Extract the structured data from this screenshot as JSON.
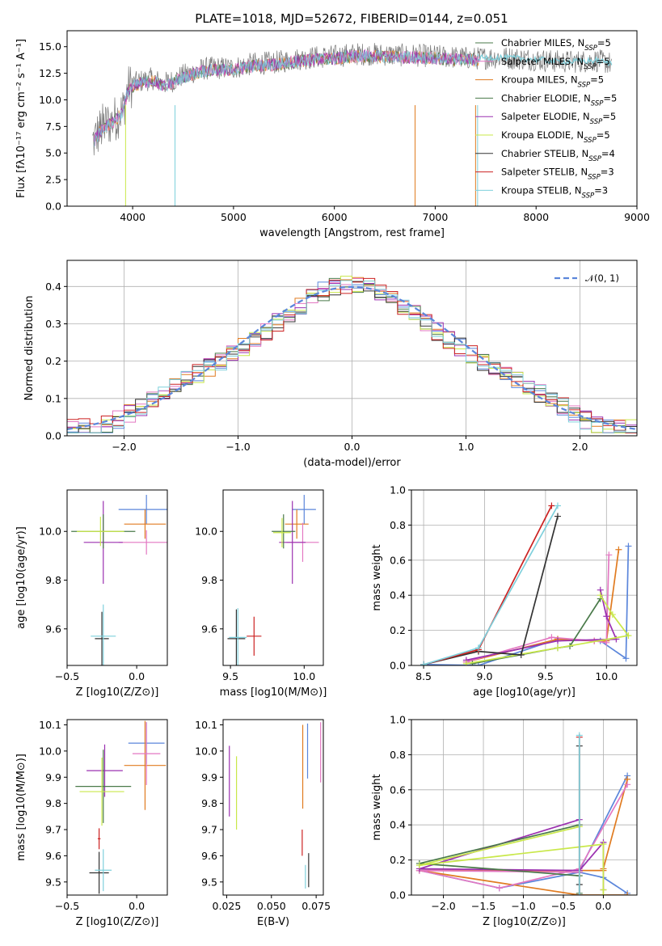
{
  "figure_title": "PLATE=1018, MJD=52672, FIBERID=0144, z=0.051",
  "colors": {
    "c0": "#777777",
    "c1": "#e377c2",
    "c2": "#e07b20",
    "c3": "#4a7a4a",
    "c4": "#9b30b0",
    "c5": "#c9e84a",
    "c6": "#333333",
    "c7": "#cc2222",
    "c8": "#7ed0dc",
    "c_blue": "#5b86db",
    "normal": "#5b86db"
  },
  "chart_data": [
    {
      "id": "spectrum",
      "type": "line",
      "title": "PLATE=1018, MJD=52672, FIBERID=0144, z=0.051",
      "xlabel": "wavelength [Angstrom, rest frame]",
      "ylabel": "Flux [fλ10⁻¹⁷ erg cm⁻² s⁻¹ A⁻¹]",
      "xlim": [
        3350,
        9000
      ],
      "ylim": [
        0,
        16.5
      ],
      "xticks": [
        4000,
        5000,
        6000,
        7000,
        8000,
        9000
      ],
      "yticks": [
        0.0,
        2.5,
        5.0,
        7.5,
        10.0,
        12.5,
        15.0
      ],
      "data_x": [
        3600,
        3700,
        3800,
        3900,
        3950,
        4000,
        4100,
        4200,
        4300,
        4400,
        4500,
        4600,
        4700,
        4800,
        4900,
        5000,
        5200,
        5400,
        5600,
        5800,
        6000,
        6200,
        6400,
        6600,
        6800,
        7000,
        7200,
        7400,
        7600,
        7800,
        8000,
        8200,
        8400,
        8600,
        8750
      ],
      "data_y": [
        6.0,
        7.5,
        8.0,
        9.0,
        11.0,
        11.5,
        11.8,
        12.0,
        11.5,
        11.8,
        12.3,
        12.6,
        12.9,
        13.0,
        13.0,
        13.0,
        13.4,
        13.5,
        13.8,
        14.0,
        14.1,
        14.3,
        14.3,
        14.2,
        14.2,
        14.1,
        14.0,
        13.9,
        14.0,
        13.9,
        13.8,
        13.6,
        13.6,
        13.7,
        13.4
      ],
      "model_range": [
        3620,
        7430
      ],
      "legend": [
        "Chabrier MILES, N_SSP=5",
        "Salpeter MILES, N_SSP=5",
        "Kroupa MILES, N_SSP=5",
        "Chabrier ELODIE, N_SSP=5",
        "Salpeter ELODIE, N_SSP=5",
        "Kroupa ELODIE, N_SSP=5",
        "Chabrier STELIB, N_SSP=4",
        "Salpeter STELIB, N_SSP=3",
        "Kroupa STELIB, N_SSP=3"
      ],
      "legend_position": "upper-right"
    },
    {
      "id": "residuals",
      "type": "histogram",
      "xlabel": "(data-model)/error",
      "ylabel": "Normed distribution",
      "xlim": [
        -2.5,
        2.5
      ],
      "ylim": [
        0,
        0.47
      ],
      "xticks": [
        -2,
        -1,
        0,
        1,
        2
      ],
      "yticks": [
        0.0,
        0.1,
        0.2,
        0.3,
        0.4
      ],
      "bin_width": 0.1,
      "legend": [
        "𝒩(0, 1)"
      ],
      "legend_position": "upper-right",
      "grid": true
    },
    {
      "id": "age_vs_Z",
      "type": "scatter",
      "xlabel": "Z [log10(Z/Z⊙)]",
      "ylabel": "age  [log10(age/yr)]",
      "xlim": [
        -0.5,
        0.22
      ],
      "ylim": [
        9.45,
        10.17
      ],
      "xticks": [
        -0.5,
        0.0
      ],
      "xticklabels": [
        "−0.5",
        "0.0"
      ],
      "yticks": [
        9.6,
        9.8,
        10.0
      ],
      "points": [
        {
          "c": "c_blue",
          "x": 0.07,
          "y": 10.09,
          "xerr": 0.2,
          "yerr": 0.06
        },
        {
          "c": "c2",
          "x": 0.06,
          "y": 10.03,
          "xerr": 0.15,
          "yerr": 0.06
        },
        {
          "c": "c1",
          "x": 0.07,
          "y": 9.955,
          "xerr": 0.2,
          "yerr": 0.05
        },
        {
          "c": "c4",
          "x": -0.24,
          "y": 9.955,
          "xerr": 0.14,
          "yerr": 0.17
        },
        {
          "c": "c3",
          "x": -0.24,
          "y": 10.0,
          "xerr": 0.23,
          "yerr": 0.07
        },
        {
          "c": "c5",
          "x": -0.26,
          "y": 10.0,
          "xerr": 0.17,
          "yerr": 0.06
        },
        {
          "c": "c6",
          "x": -0.25,
          "y": 9.56,
          "xerr": 0.05,
          "yerr": 0.11
        },
        {
          "c": "c8",
          "x": -0.24,
          "y": 9.57,
          "xerr": 0.09,
          "yerr": 0.13
        }
      ]
    },
    {
      "id": "age_vs_mass",
      "type": "scatter",
      "xlabel": "mass [log10(M/M⊙)]",
      "ylabel": "",
      "xlim": [
        9.45,
        10.13
      ],
      "ylim": [
        9.45,
        10.17
      ],
      "xticks": [
        9.5,
        10.0
      ],
      "yticks": [
        9.6,
        9.8,
        10.0
      ],
      "points": [
        {
          "c": "c_blue",
          "x": 10.0,
          "y": 10.09,
          "xerr": 0.08,
          "yerr": 0.06
        },
        {
          "c": "c2",
          "x": 9.95,
          "y": 10.03,
          "xerr": 0.08,
          "yerr": 0.06
        },
        {
          "c": "c1",
          "x": 9.99,
          "y": 9.955,
          "xerr": 0.11,
          "yerr": 0.08
        },
        {
          "c": "c4",
          "x": 9.92,
          "y": 9.955,
          "xerr": 0.09,
          "yerr": 0.17
        },
        {
          "c": "c3",
          "x": 9.86,
          "y": 10.0,
          "xerr": 0.08,
          "yerr": 0.07
        },
        {
          "c": "c5",
          "x": 9.85,
          "y": 9.995,
          "xerr": 0.06,
          "yerr": 0.06
        },
        {
          "c": "c7",
          "x": 9.66,
          "y": 9.57,
          "xerr": 0.05,
          "yerr": 0.08
        },
        {
          "c": "c6",
          "x": 9.54,
          "y": 9.56,
          "xerr": 0.06,
          "yerr": 0.12
        },
        {
          "c": "c8",
          "x": 9.55,
          "y": 9.565,
          "xerr": 0.06,
          "yerr": 0.12
        }
      ]
    },
    {
      "id": "mass_weight_vs_age",
      "type": "line",
      "xlabel": "age  [log10(age/yr)]",
      "ylabel": "mass weight",
      "xlim": [
        8.4,
        10.25
      ],
      "ylim": [
        0,
        1
      ],
      "xticks": [
        8.5,
        9.0,
        9.5,
        10.0
      ],
      "yticks": [
        0.0,
        0.2,
        0.4,
        0.6,
        0.8,
        1.0
      ],
      "grid": true,
      "series": [
        {
          "c": "c_blue",
          "x": [
            10.18,
            10.16,
            9.95,
            9.6,
            8.95,
            8.5
          ],
          "y": [
            0.68,
            0.04,
            0.14,
            0.15,
            0.0,
            0.005
          ]
        },
        {
          "c": "c2",
          "x": [
            10.1,
            10.0,
            9.9,
            9.6,
            8.85
          ],
          "y": [
            0.66,
            0.14,
            0.14,
            0.15,
            0.02
          ]
        },
        {
          "c": "c1",
          "x": [
            10.02,
            10.0,
            9.9,
            9.55,
            8.85
          ],
          "y": [
            0.63,
            0.13,
            0.14,
            0.16,
            0.02
          ]
        },
        {
          "c": "c4",
          "x": [
            9.95,
            10.0,
            10.08,
            9.6,
            8.85
          ],
          "y": [
            0.43,
            0.28,
            0.15,
            0.14,
            0.03
          ]
        },
        {
          "c": "c3",
          "x": [
            9.95,
            9.7,
            9.6,
            8.9
          ],
          "y": [
            0.38,
            0.11,
            0.1,
            0.01
          ]
        },
        {
          "c": "c5",
          "x": [
            9.95,
            10.05,
            10.18,
            9.6,
            8.85
          ],
          "y": [
            0.4,
            0.29,
            0.17,
            0.1,
            0.01
          ]
        },
        {
          "c": "c6",
          "x": [
            9.6,
            9.3,
            8.95,
            8.5
          ],
          "y": [
            0.85,
            0.06,
            0.08,
            0.005
          ]
        },
        {
          "c": "c7",
          "x": [
            9.55,
            8.95,
            8.5
          ],
          "y": [
            0.91,
            0.09,
            0.005
          ]
        },
        {
          "c": "c8",
          "x": [
            9.6,
            8.95,
            8.5
          ],
          "y": [
            0.91,
            0.1,
            0.005
          ]
        }
      ]
    },
    {
      "id": "mass_vs_Z",
      "type": "scatter",
      "xlabel": "Z [log10(Z/Z⊙)]",
      "ylabel": "mass [log10(M/M⊙)]",
      "xlim": [
        -0.5,
        0.22
      ],
      "ylim": [
        9.45,
        10.12
      ],
      "xticks": [
        -0.5,
        0.0
      ],
      "xticklabels": [
        "−0.5",
        "0.0"
      ],
      "yticks": [
        9.5,
        9.6,
        9.7,
        9.8,
        9.9,
        10.0,
        10.1
      ],
      "points": [
        {
          "c": "c_blue",
          "x": 0.07,
          "y": 10.03,
          "xerr": 0.13,
          "yerr": 0.08
        },
        {
          "c": "c2",
          "x": 0.06,
          "y": 9.945,
          "xerr": 0.15,
          "yerr": 0.17
        },
        {
          "c": "c1",
          "x": 0.07,
          "y": 9.99,
          "xerr": 0.1,
          "yerr": 0.12
        },
        {
          "c": "c4",
          "x": -0.23,
          "y": 9.925,
          "xerr": 0.13,
          "yerr": 0.1
        },
        {
          "c": "c3",
          "x": -0.24,
          "y": 9.865,
          "xerr": 0.2,
          "yerr": 0.14
        },
        {
          "c": "c5",
          "x": -0.25,
          "y": 9.845,
          "xerr": 0.16,
          "yerr": 0.13
        },
        {
          "c": "c7",
          "x": -0.27,
          "y": 9.665,
          "xerr": 0.01,
          "yerr": 0.04
        },
        {
          "c": "c6",
          "x": -0.27,
          "y": 9.535,
          "xerr": 0.07,
          "yerr": 0.08
        },
        {
          "c": "c8",
          "x": -0.24,
          "y": 9.545,
          "xerr": 0.06,
          "yerr": 0.08
        }
      ]
    },
    {
      "id": "mass_vs_ebv",
      "type": "scatter",
      "xlabel": "E(B-V)",
      "ylabel": "",
      "xlim": [
        0.023,
        0.079
      ],
      "ylim": [
        9.45,
        10.12
      ],
      "xticks": [
        0.025,
        0.05,
        0.075
      ],
      "xticklabels": [
        "0.025",
        "0.050",
        "0.075"
      ],
      "yticks": [
        9.5,
        9.6,
        9.7,
        9.8,
        9.9,
        10.0,
        10.1
      ],
      "points": [
        {
          "c": "c_blue",
          "x": 0.0702,
          "y": 10.0,
          "xerr": 0,
          "yerr": 0.105
        },
        {
          "c": "c2",
          "x": 0.0675,
          "y": 9.94,
          "xerr": 0,
          "yerr": 0.16
        },
        {
          "c": "c1",
          "x": 0.0775,
          "y": 9.995,
          "xerr": 0,
          "yerr": 0.115
        },
        {
          "c": "c4",
          "x": 0.0265,
          "y": 9.885,
          "xerr": 0,
          "yerr": 0.135
        },
        {
          "c": "c5",
          "x": 0.0305,
          "y": 9.84,
          "xerr": 0,
          "yerr": 0.14
        },
        {
          "c": "c7",
          "x": 0.0672,
          "y": 9.65,
          "xerr": 0,
          "yerr": 0.05
        },
        {
          "c": "c6",
          "x": 0.0708,
          "y": 9.545,
          "xerr": 0,
          "yerr": 0.065
        },
        {
          "c": "c8",
          "x": 0.069,
          "y": 9.52,
          "xerr": 0,
          "yerr": 0.045
        }
      ]
    },
    {
      "id": "mass_weight_vs_Z",
      "type": "line",
      "xlabel": "Z [log10(Z/Z⊙)]",
      "ylabel": "mass weight",
      "xlim": [
        -2.4,
        0.42
      ],
      "ylim": [
        0,
        1
      ],
      "xticks": [
        -2.0,
        -1.5,
        -1.0,
        -0.5,
        0.0
      ],
      "xticklabels": [
        "−2.0",
        "−1.5",
        "−1.0",
        "−0.5",
        "0.0"
      ],
      "yticks": [
        0.0,
        0.2,
        0.4,
        0.6,
        0.8,
        1.0
      ],
      "grid": true,
      "series": [
        {
          "c": "c_blue",
          "x": [
            0.3,
            -0.3,
            -2.3,
            -1.3,
            -0.3,
            0.0,
            0.3
          ],
          "y": [
            0.68,
            0.14,
            0.14,
            0.04,
            0.13,
            0.1,
            0.01
          ]
        },
        {
          "c": "c2",
          "x": [
            0.3,
            0.0,
            0.0,
            -0.3,
            -2.3,
            -0.3,
            0.3
          ],
          "y": [
            0.66,
            0.15,
            0.14,
            0.14,
            0.14,
            0.0,
            0.0
          ]
        },
        {
          "c": "c1",
          "x": [
            0.3,
            -0.3,
            -1.3,
            -2.3,
            -0.3
          ],
          "y": [
            0.63,
            0.15,
            0.04,
            0.14,
            0.13
          ]
        },
        {
          "c": "c4",
          "x": [
            -0.3,
            -2.3,
            -0.3,
            0.0,
            0.0
          ],
          "y": [
            0.43,
            0.15,
            0.14,
            0.3,
            0.03
          ]
        },
        {
          "c": "c3",
          "x": [
            -0.3,
            -2.3,
            -0.3,
            -0.3
          ],
          "y": [
            0.4,
            0.18,
            0.11,
            0.01
          ]
        },
        {
          "c": "c5",
          "x": [
            -0.3,
            -2.3,
            0.0,
            0.0,
            0.0
          ],
          "y": [
            0.39,
            0.17,
            0.29,
            0.03,
            0.0
          ]
        },
        {
          "c": "c6",
          "x": [
            -0.3,
            -0.3,
            -0.3
          ],
          "y": [
            0.85,
            0.06,
            0.0
          ]
        },
        {
          "c": "c7",
          "x": [
            -0.3,
            -0.3
          ],
          "y": [
            0.9,
            0.0
          ]
        },
        {
          "c": "c8",
          "x": [
            -0.3,
            -0.3
          ],
          "y": [
            0.91,
            0.0
          ]
        }
      ]
    }
  ]
}
